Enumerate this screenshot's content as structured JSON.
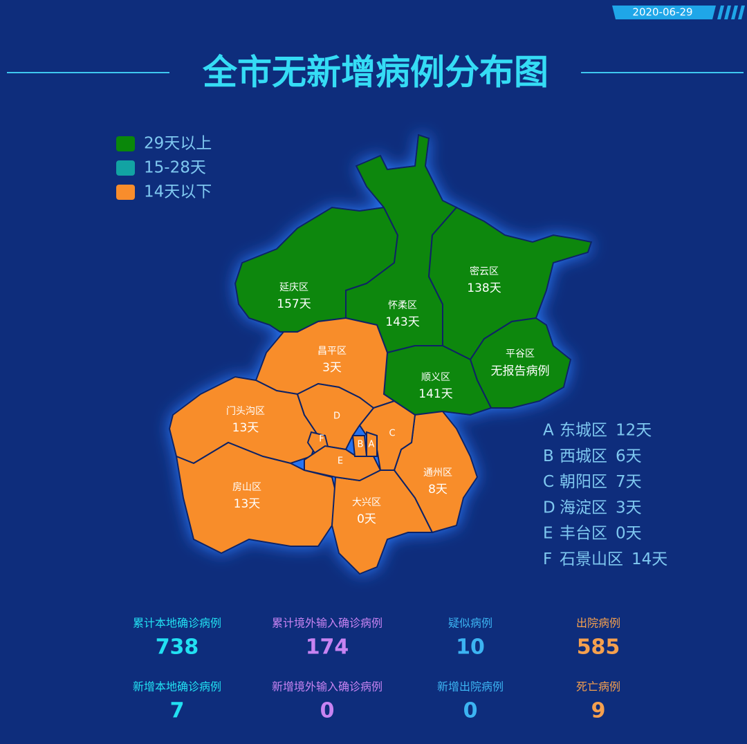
{
  "date": "2020-06-29",
  "title": "全市无新增病例分布图",
  "legend": [
    {
      "label": "29天以上",
      "color": "#0a870a"
    },
    {
      "label": "15-28天",
      "color": "#12a3a3"
    },
    {
      "label": "14天以下",
      "color": "#f88d2c"
    }
  ],
  "districts": [
    {
      "name": "延庆区",
      "days": "157天"
    },
    {
      "name": "怀柔区",
      "days": "143天"
    },
    {
      "name": "密云区",
      "days": "138天"
    },
    {
      "name": "平谷区",
      "days": "无报告病例"
    },
    {
      "name": "顺义区",
      "days": "141天"
    },
    {
      "name": "昌平区",
      "days": "3天"
    },
    {
      "name": "门头沟区",
      "days": "13天"
    },
    {
      "name": "房山区",
      "days": "13天"
    },
    {
      "name": "大兴区",
      "days": "0天"
    },
    {
      "name": "通州区",
      "days": "8天"
    }
  ],
  "key": [
    {
      "letter": "A",
      "name": "东城区",
      "days": "12天"
    },
    {
      "letter": "B",
      "name": "西城区",
      "days": "6天"
    },
    {
      "letter": "C",
      "name": "朝阳区",
      "days": "7天"
    },
    {
      "letter": "D",
      "name": "海淀区",
      "days": "3天"
    },
    {
      "letter": "E",
      "name": "丰台区",
      "days": "0天"
    },
    {
      "letter": "F",
      "name": "石景山区",
      "days": "14天"
    }
  ],
  "stats": [
    {
      "label": "累计本地确诊病例",
      "value": 738,
      "color": "#22e0f2"
    },
    {
      "label": "累计境外输入确诊病例",
      "value": 174,
      "color": "#c783f2"
    },
    {
      "label": "疑似病例",
      "value": 10,
      "color": "#3cb4f2"
    },
    {
      "label": "出院病例",
      "value": 585,
      "color": "#f5a04e"
    },
    {
      "label": "新增本地确诊病例",
      "value": 7,
      "color": "#22e0f2"
    },
    {
      "label": "新增境外输入确诊病例",
      "value": 0,
      "color": "#c783f2"
    },
    {
      "label": "新增出院病例",
      "value": 0,
      "color": "#3cb4f2"
    },
    {
      "label": "死亡病例",
      "value": 9,
      "color": "#f5a04e"
    }
  ]
}
